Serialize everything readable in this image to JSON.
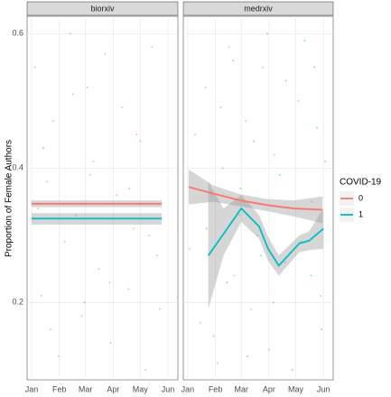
{
  "chart_data": {
    "type": "line",
    "y_label": "Proportion of Female Authors",
    "legend_title": "COVID-19",
    "series": [
      {
        "name": "0",
        "color": "#f8766d"
      },
      {
        "name": "1",
        "color": "#00bfc4"
      }
    ],
    "ylim": [
      0.085,
      0.626
    ],
    "yticks": [
      0.2,
      0.4,
      0.6
    ],
    "xlim": [
      -4,
      164
    ],
    "xticks": [
      {
        "value": 1,
        "label": "Jan"
      },
      {
        "value": 32,
        "label": "Feb"
      },
      {
        "value": 61,
        "label": "Mar"
      },
      {
        "value": 92,
        "label": "Apr"
      },
      {
        "value": 122,
        "label": "May"
      },
      {
        "value": 153,
        "label": "Jun"
      }
    ],
    "grid": true,
    "facets": [
      {
        "title": "biorxiv",
        "lines": [
          {
            "x": [
              1,
              146
            ],
            "values": [
              0.347,
              0.347
            ],
            "lower": [
              0.342,
              0.342
            ],
            "upper": [
              0.352,
              0.352
            ]
          },
          {
            "x": [
              1,
              146
            ],
            "values": [
              0.325,
              0.325
            ],
            "lower": [
              0.316,
              0.316
            ],
            "upper": [
              0.333,
              0.333
            ]
          }
        ],
        "points": [
          {
            "x": [
              5,
              12,
              18,
              25,
              31,
              38,
              44,
              50,
              57,
              63,
              70,
              76,
              83,
              89,
              96,
              102,
              109,
              115,
              122,
              128,
              135,
              141,
              8,
              22,
              47,
              66,
              88,
              118,
              132,
              144
            ],
            "y": [
              0.55,
              0.21,
              0.38,
              0.47,
              0.12,
              0.29,
              0.6,
              0.33,
              0.18,
              0.52,
              0.41,
              0.25,
              0.57,
              0.14,
              0.36,
              0.49,
              0.22,
              0.31,
              0.44,
              0.1,
              0.58,
              0.27,
              0.34,
              0.16,
              0.51,
              0.39,
              0.23,
              0.45,
              0.3,
              0.19
            ]
          },
          {
            "x": [
              14,
              60,
              110
            ],
            "y": [
              0.43,
              0.2,
              0.37
            ]
          }
        ]
      },
      {
        "title": "medrxiv",
        "lines": [
          {
            "x": [
              2,
              30,
              60,
              90,
              120,
              152
            ],
            "values": [
              0.372,
              0.362,
              0.352,
              0.345,
              0.34,
              0.338
            ],
            "lower": [
              0.346,
              0.35,
              0.343,
              0.336,
              0.328,
              0.318
            ],
            "upper": [
              0.398,
              0.374,
              0.361,
              0.354,
              0.352,
              0.358
            ]
          },
          {
            "x": [
              24,
              41,
              61,
              81,
              91,
              103,
              126,
              137,
              153
            ],
            "values": [
              0.27,
              0.302,
              0.34,
              0.313,
              0.28,
              0.255,
              0.288,
              0.292,
              0.31
            ],
            "lower": [
              0.19,
              0.27,
              0.32,
              0.295,
              0.262,
              0.24,
              0.275,
              0.278,
              0.28
            ],
            "upper": [
              0.38,
              0.34,
              0.36,
              0.33,
              0.298,
              0.27,
              0.3,
              0.306,
              0.34
            ]
          }
        ],
        "points": [
          {
            "x": [
              3,
              9,
              15,
              21,
              28,
              34,
              40,
              47,
              53,
              59,
              66,
              72,
              79,
              85,
              92,
              98,
              110,
              125,
              140,
              150
            ],
            "y": [
              0.28,
              0.45,
              0.17,
              0.52,
              0.36,
              0.11,
              0.4,
              0.58,
              0.24,
              0.33,
              0.47,
              0.19,
              0.3,
              0.55,
              0.13,
              0.42,
              0.26,
              0.5,
              0.35,
              0.21
            ]
          },
          {
            "x": [
              22,
              30,
              38,
              45,
              52,
              60,
              68,
              75,
              83,
              90,
              97,
              104,
              111,
              118,
              125,
              132,
              139,
              146,
              151,
              155,
              128,
              143
            ],
            "y": [
              0.31,
              0.15,
              0.49,
              0.23,
              0.56,
              0.37,
              0.12,
              0.44,
              0.27,
              0.6,
              0.2,
              0.39,
              0.53,
              0.1,
              0.34,
              0.59,
              0.24,
              0.46,
              0.16,
              0.41,
              0.29,
              0.55
            ]
          }
        ]
      }
    ]
  }
}
